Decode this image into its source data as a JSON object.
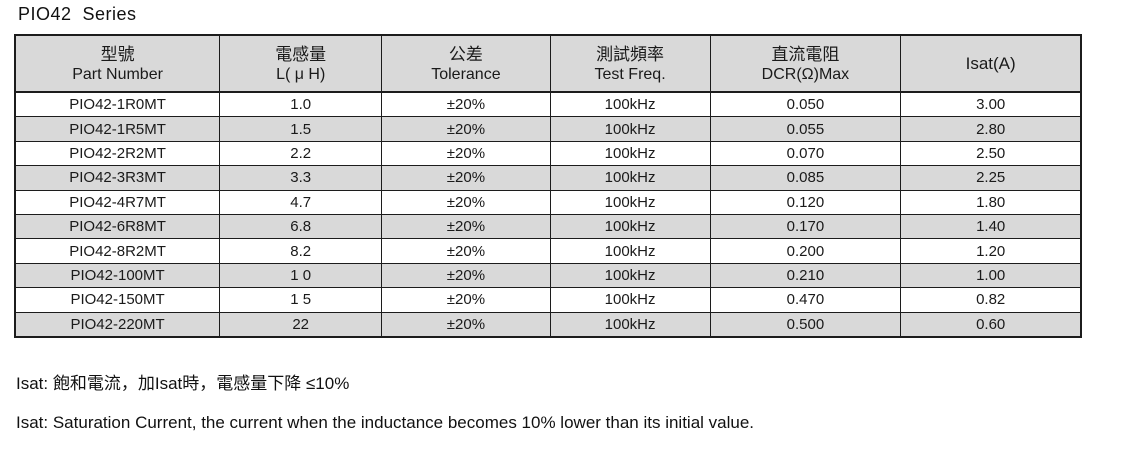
{
  "page": {
    "title": "PIO42  Series"
  },
  "table": {
    "columns": [
      {
        "zh": "型號",
        "en": "Part Number"
      },
      {
        "zh": "電感量",
        "en": "L( μ H)"
      },
      {
        "zh": "公差",
        "en": "Tolerance"
      },
      {
        "zh": "測試頻率",
        "en": "Test Freq."
      },
      {
        "zh": "直流電阻",
        "en": "DCR(Ω)Max"
      },
      {
        "zh": "Isat(A)",
        "en": ""
      }
    ],
    "rows": [
      [
        "PIO42-1R0MT",
        "1.0",
        "±20%",
        "100kHz",
        "0.050",
        "3.00"
      ],
      [
        "PIO42-1R5MT",
        "1.5",
        "±20%",
        "100kHz",
        "0.055",
        "2.80"
      ],
      [
        "PIO42-2R2MT",
        "2.2",
        "±20%",
        "100kHz",
        "0.070",
        "2.50"
      ],
      [
        "PIO42-3R3MT",
        "3.3",
        "±20%",
        "100kHz",
        "0.085",
        "2.25"
      ],
      [
        "PIO42-4R7MT",
        "4.7",
        "±20%",
        "100kHz",
        "0.120",
        "1.80"
      ],
      [
        "PIO42-6R8MT",
        "6.8",
        "±20%",
        "100kHz",
        "0.170",
        "1.40"
      ],
      [
        "PIO42-8R2MT",
        "8.2",
        "±20%",
        "100kHz",
        "0.200",
        "1.20"
      ],
      [
        "PIO42-100MT",
        "1 0",
        "±20%",
        "100kHz",
        "0.210",
        "1.00"
      ],
      [
        "PIO42-150MT",
        "1 5",
        "±20%",
        "100kHz",
        "0.470",
        "0.82"
      ],
      [
        "PIO42-220MT",
        "22",
        "±20%",
        "100kHz",
        "0.500",
        "0.60"
      ]
    ]
  },
  "notes": {
    "zh": "Isat: 飽和電流，加Isat時，電感量下降 ≤10%",
    "en": "Isat: Saturation Current, the current when the inductance becomes 10% lower than its initial value."
  },
  "colors": {
    "stripe_gray": "#d9d9d9",
    "header_gray": "#d9d9d9",
    "border": "#1c1c1c",
    "text": "#111111"
  }
}
